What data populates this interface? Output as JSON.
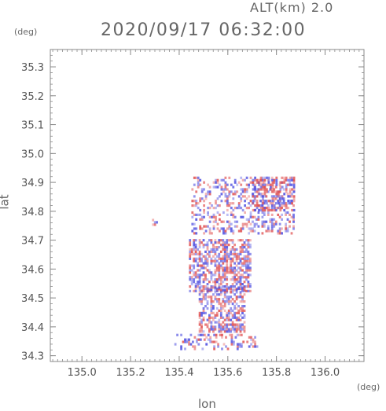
{
  "header": {
    "altitude_label": "ALT(km) 2.0",
    "timestamp": "2020/09/17 06:32:00"
  },
  "chart_data": {
    "type": "heatmap",
    "title": "2020/09/17 06:32:00",
    "subtitle": "ALT(km) 2.0",
    "xlabel": "lon",
    "ylabel": "lat",
    "x_unit": "(deg)",
    "y_unit": "(deg)",
    "xlim": [
      134.87,
      136.16
    ],
    "ylim": [
      34.28,
      35.36
    ],
    "x_ticks": [
      "135.0",
      "135.2",
      "135.4",
      "135.6",
      "135.8",
      "136.0"
    ],
    "x_tick_values": [
      135.0,
      135.2,
      135.4,
      135.6,
      135.8,
      136.0
    ],
    "y_ticks": [
      "34.3",
      "34.4",
      "34.5",
      "34.6",
      "34.7",
      "34.8",
      "34.9",
      "35.0",
      "35.1",
      "35.2",
      "35.3"
    ],
    "y_tick_values": [
      34.3,
      34.4,
      34.5,
      34.6,
      34.7,
      34.8,
      34.9,
      35.0,
      35.1,
      35.2,
      35.3
    ],
    "grid": false,
    "colors": {
      "positive": "#e05050",
      "negative": "#5050e0",
      "axis": "#888888"
    },
    "echo_clusters": [
      {
        "region": "north",
        "lon_range": [
          135.45,
          135.87
        ],
        "lat_range": [
          34.72,
          34.92
        ],
        "density": 0.35
      },
      {
        "region": "central",
        "lon_range": [
          135.44,
          135.69
        ],
        "lat_range": [
          34.52,
          34.7
        ],
        "density": 0.62
      },
      {
        "region": "stem",
        "lon_range": [
          135.48,
          135.67
        ],
        "lat_range": [
          34.38,
          34.54
        ],
        "density": 0.55
      },
      {
        "region": "south",
        "lon_range": [
          135.38,
          135.72
        ],
        "lat_range": [
          34.32,
          34.37
        ],
        "density": 0.3
      },
      {
        "region": "west",
        "lon_range": [
          135.28,
          135.31
        ],
        "lat_range": [
          34.75,
          34.77
        ],
        "density": 0.55
      },
      {
        "region": "ne-arm",
        "lon_range": [
          135.7,
          135.87
        ],
        "lat_range": [
          34.8,
          34.92
        ],
        "density": 0.45
      }
    ]
  }
}
